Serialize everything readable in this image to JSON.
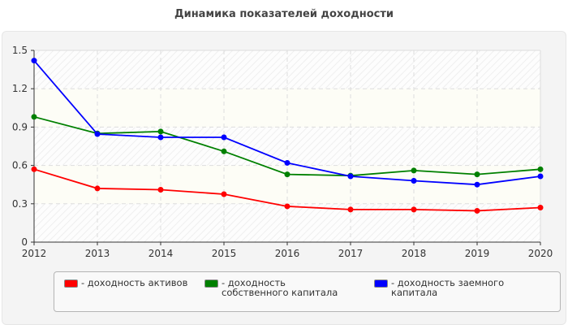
{
  "chart_data": {
    "type": "line",
    "title": "Динамика показателей доходности",
    "x": [
      "2012",
      "2013",
      "2014",
      "2015",
      "2016",
      "2017",
      "2018",
      "2019",
      "2020"
    ],
    "ylim": [
      0,
      1.5
    ],
    "yticks": [
      "0",
      "0.3",
      "0.6",
      "0.9",
      "1.2",
      "1.5"
    ],
    "grid": true,
    "legend_position": "bottom",
    "series": [
      {
        "name": "- доходность активов",
        "color": "#ff0000",
        "values": [
          0.57,
          0.42,
          0.41,
          0.375,
          0.28,
          0.255,
          0.255,
          0.245,
          0.27
        ]
      },
      {
        "name": "- доходность собственного капитала",
        "color": "#008000",
        "values": [
          0.98,
          0.85,
          0.865,
          0.71,
          0.53,
          0.52,
          0.56,
          0.53,
          0.57
        ]
      },
      {
        "name": "- доходность заемного капитала",
        "color": "#0000ff",
        "values": [
          1.42,
          0.845,
          0.82,
          0.82,
          0.62,
          0.515,
          0.48,
          0.45,
          0.515
        ]
      }
    ]
  }
}
